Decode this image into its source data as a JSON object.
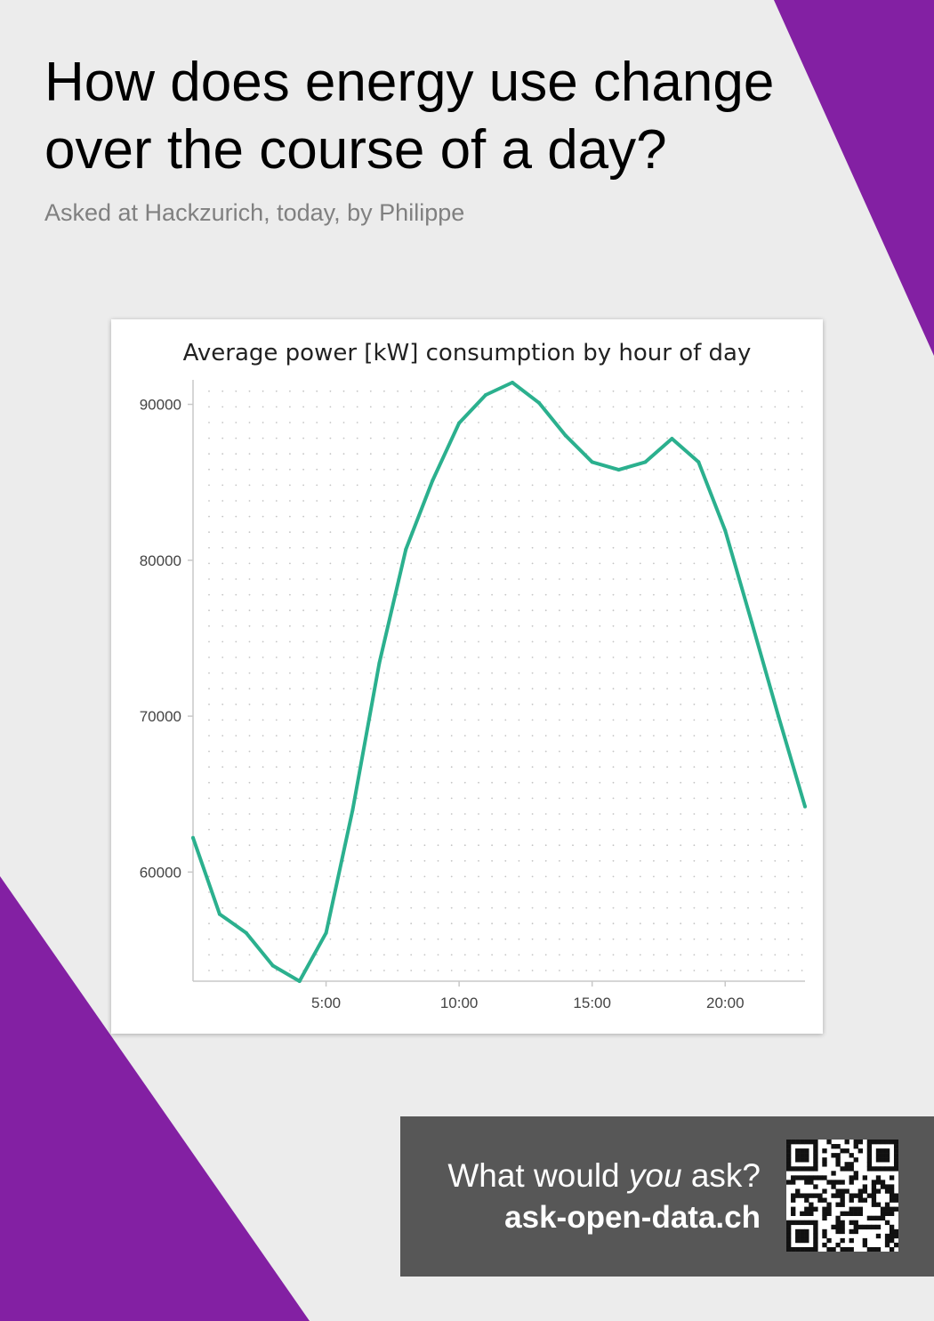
{
  "colors": {
    "background": "#ececec",
    "accent_purple": "#8320a3",
    "line": "#2bb08e",
    "cta_background": "#575757"
  },
  "header": {
    "title": "How does energy use change over the course of a day?",
    "subtitle": "Asked at Hackzurich, today, by Philippe"
  },
  "chart_data": {
    "type": "line",
    "title": "Average power [kW] consumption by hour of day",
    "xlabel": "",
    "ylabel": "",
    "x": [
      0,
      1,
      2,
      3,
      4,
      5,
      6,
      7,
      8,
      9,
      10,
      11,
      12,
      13,
      14,
      15,
      16,
      17,
      18,
      19,
      20,
      21,
      22,
      23
    ],
    "series": [
      {
        "values": [
          62200,
          57300,
          56100,
          54000,
          53000,
          56100,
          64000,
          73400,
          80700,
          85100,
          88800,
          90600,
          91400,
          90100,
          88000,
          86300,
          85800,
          86300,
          87800,
          86300,
          81900,
          76000,
          70000,
          64200
        ]
      }
    ],
    "x_ticks": [
      {
        "value": 5,
        "label": "5:00"
      },
      {
        "value": 10,
        "label": "10:00"
      },
      {
        "value": 15,
        "label": "15:00"
      },
      {
        "value": 20,
        "label": "20:00"
      }
    ],
    "y_ticks": [
      60000,
      70000,
      80000,
      90000
    ],
    "xlim": [
      0,
      23
    ],
    "ylim": [
      53000,
      91400
    ],
    "grid": "dotted",
    "legend": "none"
  },
  "cta": {
    "question_before": "What would ",
    "question_emphasis": "you",
    "question_after": " ask?",
    "url": "ask-open-data.ch"
  }
}
